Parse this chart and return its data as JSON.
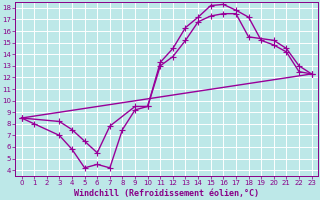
{
  "title": "",
  "xlabel": "Windchill (Refroidissement éolien,°C)",
  "ylabel": "",
  "xlim": [
    -0.5,
    23.5
  ],
  "ylim": [
    3.5,
    18.5
  ],
  "xticks": [
    0,
    1,
    2,
    3,
    4,
    5,
    6,
    7,
    8,
    9,
    10,
    11,
    12,
    13,
    14,
    15,
    16,
    17,
    18,
    19,
    20,
    21,
    22,
    23
  ],
  "yticks": [
    4,
    5,
    6,
    7,
    8,
    9,
    10,
    11,
    12,
    13,
    14,
    15,
    16,
    17,
    18
  ],
  "bg_color": "#bde8e8",
  "grid_color": "#ffffff",
  "line_color": "#990099",
  "curve1_x": [
    0,
    1,
    3,
    4,
    5,
    6,
    7,
    8,
    9,
    10,
    11,
    12,
    13,
    14,
    15,
    16,
    17,
    18,
    19,
    20,
    21,
    22,
    23
  ],
  "curve1_y": [
    8.5,
    8.0,
    7.0,
    5.8,
    4.2,
    4.5,
    4.2,
    7.5,
    9.2,
    9.5,
    13.3,
    14.5,
    16.3,
    17.2,
    18.2,
    18.3,
    17.8,
    17.2,
    15.2,
    14.8,
    14.2,
    12.5,
    12.3
  ],
  "curve2_x": [
    0,
    3,
    4,
    5,
    6,
    7,
    9,
    10,
    11,
    12,
    13,
    14,
    15,
    16,
    17,
    18,
    20,
    21,
    22,
    23
  ],
  "curve2_y": [
    8.5,
    8.2,
    7.5,
    6.5,
    5.5,
    7.8,
    9.5,
    9.5,
    13.0,
    13.8,
    15.2,
    16.8,
    17.3,
    17.5,
    17.5,
    15.5,
    15.2,
    14.5,
    13.0,
    12.3
  ],
  "curve3_x": [
    0,
    23
  ],
  "curve3_y": [
    8.5,
    12.3
  ],
  "marker": "+",
  "markersize": 4,
  "linewidth": 1.0,
  "tick_fontsize": 5.0,
  "xlabel_fontsize": 6.0,
  "tick_color": "#880088",
  "border_color": "#880088"
}
